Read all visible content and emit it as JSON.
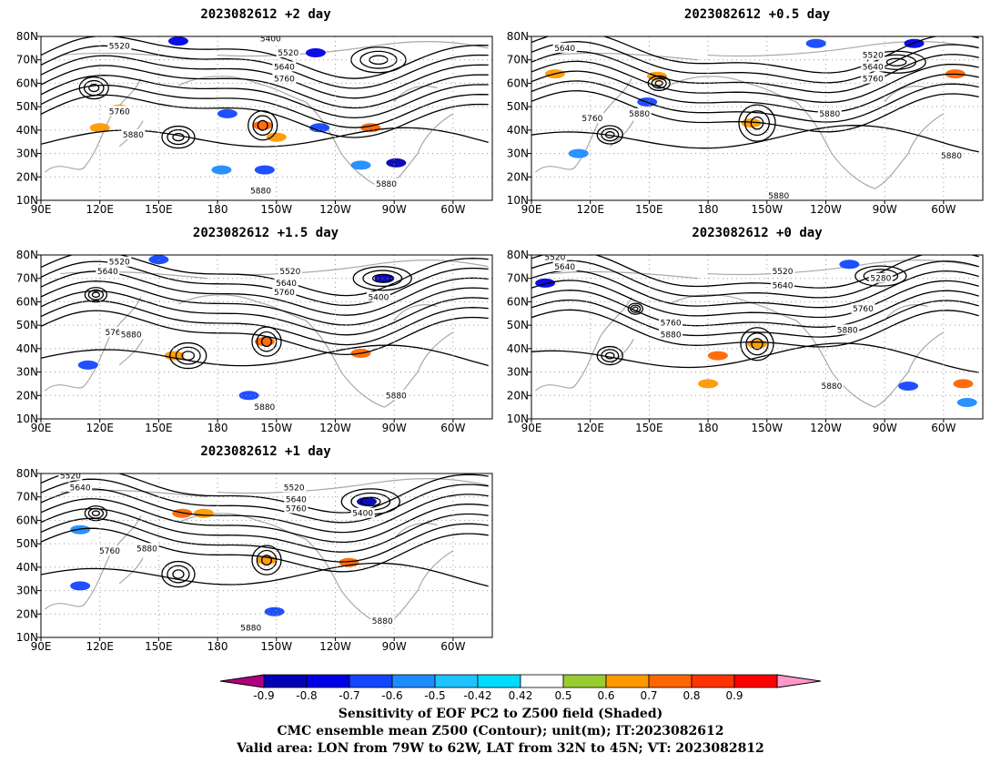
{
  "panels": [
    {
      "title": "2023082612 +2 day"
    },
    {
      "title": "2023082612 +0.5 day"
    },
    {
      "title": "2023082612 +1.5 day"
    },
    {
      "title": "2023082612 +0 day"
    },
    {
      "title": "2023082612 +1 day"
    }
  ],
  "caption": {
    "line1": "Sensitivity of EOF PC2 to Z500 field (Shaded)",
    "line2": "CMC ensemble mean Z500 (Contour); unit(m); IT:2023082612",
    "line3": "Valid area: LON from 79W to 62W, LAT from 32N to 45N; VT: 2023082812"
  },
  "chart_data": {
    "type": "heatmap",
    "map": {
      "lon_ticks": [
        "90E",
        "120E",
        "150E",
        "180",
        "150W",
        "120W",
        "90W",
        "60W"
      ],
      "lat_ticks": [
        "10N",
        "20N",
        "30N",
        "40N",
        "50N",
        "60N",
        "70N",
        "80N"
      ],
      "lon_range": [
        90,
        320
      ],
      "lat_range": [
        10,
        80
      ],
      "grid": true
    },
    "colorbar": {
      "tick_labels": [
        "-0.9",
        "-0.8",
        "-0.7",
        "-0.6",
        "-0.5",
        "-0.42",
        "0.42",
        "0.5",
        "0.6",
        "0.7",
        "0.8",
        "0.9"
      ],
      "colors": [
        "#b0007f",
        "#0000b4",
        "#0000e6",
        "#1446ff",
        "#1e8cff",
        "#1ec3ff",
        "#00dcff",
        "#ffffff",
        "#99cc33",
        "#ff9900",
        "#ff6600",
        "#ff3300",
        "#ff0000",
        "#ff99cc"
      ]
    },
    "contour_labels": [
      [
        {
          "text": "5400",
          "lon": 207,
          "lat": 79
        },
        {
          "text": "5520",
          "lon": 130,
          "lat": 76
        },
        {
          "text": "5520",
          "lon": 216,
          "lat": 73
        },
        {
          "text": "5640",
          "lon": 214,
          "lat": 67
        },
        {
          "text": "5760",
          "lon": 214,
          "lat": 62
        },
        {
          "text": "5760",
          "lon": 130,
          "lat": 48
        },
        {
          "text": "5880",
          "lon": 137,
          "lat": 38
        },
        {
          "text": "5880",
          "lon": 202,
          "lat": 14
        },
        {
          "text": "5880",
          "lon": 266,
          "lat": 17
        }
      ],
      [
        {
          "text": "5640",
          "lon": 107,
          "lat": 75
        },
        {
          "text": "5520",
          "lon": 264,
          "lat": 72
        },
        {
          "text": "5640",
          "lon": 264,
          "lat": 67
        },
        {
          "text": "5760",
          "lon": 264,
          "lat": 62
        },
        {
          "text": "5760",
          "lon": 121,
          "lat": 45
        },
        {
          "text": "5880",
          "lon": 145,
          "lat": 47
        },
        {
          "text": "5880",
          "lon": 242,
          "lat": 47
        },
        {
          "text": "5880",
          "lon": 304,
          "lat": 29
        },
        {
          "text": "5880",
          "lon": 216,
          "lat": 12
        }
      ],
      [
        {
          "text": "5520",
          "lon": 130,
          "lat": 77
        },
        {
          "text": "5640",
          "lon": 124,
          "lat": 73
        },
        {
          "text": "5520",
          "lon": 217,
          "lat": 73
        },
        {
          "text": "5640",
          "lon": 215,
          "lat": 68
        },
        {
          "text": "5760",
          "lon": 214,
          "lat": 64
        },
        {
          "text": "5400",
          "lon": 262,
          "lat": 62
        },
        {
          "text": "5760",
          "lon": 128,
          "lat": 47
        },
        {
          "text": "5880",
          "lon": 136,
          "lat": 46
        },
        {
          "text": "5880",
          "lon": 204,
          "lat": 15
        },
        {
          "text": "5880",
          "lon": 271,
          "lat": 20
        }
      ],
      [
        {
          "text": "5520",
          "lon": 102,
          "lat": 79
        },
        {
          "text": "5640",
          "lon": 107,
          "lat": 75
        },
        {
          "text": "5520",
          "lon": 218,
          "lat": 73
        },
        {
          "text": "5640",
          "lon": 218,
          "lat": 67
        },
        {
          "text": "5280",
          "lon": 268,
          "lat": 70
        },
        {
          "text": "5760",
          "lon": 161,
          "lat": 51
        },
        {
          "text": "5880",
          "lon": 161,
          "lat": 46
        },
        {
          "text": "5760",
          "lon": 259,
          "lat": 57
        },
        {
          "text": "5880",
          "lon": 251,
          "lat": 48
        },
        {
          "text": "5880",
          "lon": 243,
          "lat": 24
        }
      ],
      [
        {
          "text": "5520",
          "lon": 105,
          "lat": 79
        },
        {
          "text": "5640",
          "lon": 110,
          "lat": 74
        },
        {
          "text": "5520",
          "lon": 219,
          "lat": 74
        },
        {
          "text": "5640",
          "lon": 220,
          "lat": 69
        },
        {
          "text": "5760",
          "lon": 220,
          "lat": 65
        },
        {
          "text": "5400",
          "lon": 254,
          "lat": 63
        },
        {
          "text": "5760",
          "lon": 125,
          "lat": 47
        },
        {
          "text": "5880",
          "lon": 144,
          "lat": 48
        },
        {
          "text": "5880",
          "lon": 197,
          "lat": 14
        },
        {
          "text": "5880",
          "lon": 264,
          "lat": 17
        }
      ]
    ],
    "shading_features": [
      [
        {
          "lon": 160,
          "lat": 78,
          "value": -0.7
        },
        {
          "lon": 230,
          "lat": 73,
          "value": -0.7
        },
        {
          "lon": 185,
          "lat": 47,
          "value": -0.6
        },
        {
          "lon": 130,
          "lat": 49,
          "value": 0.5
        },
        {
          "lon": 120,
          "lat": 41,
          "value": 0.5
        },
        {
          "lon": 203,
          "lat": 42,
          "value": 0.6
        },
        {
          "lon": 210,
          "lat": 37,
          "value": 0.5
        },
        {
          "lon": 258,
          "lat": 41,
          "value": 0.6
        },
        {
          "lon": 232,
          "lat": 41,
          "value": -0.6
        },
        {
          "lon": 182,
          "lat": 23,
          "value": -0.5
        },
        {
          "lon": 204,
          "lat": 23,
          "value": -0.6
        },
        {
          "lon": 253,
          "lat": 25,
          "value": -0.5
        },
        {
          "lon": 271,
          "lat": 26,
          "value": -0.8
        }
      ],
      [
        {
          "lon": 235,
          "lat": 77,
          "value": -0.6
        },
        {
          "lon": 285,
          "lat": 77,
          "value": -0.7
        },
        {
          "lon": 154,
          "lat": 63,
          "value": 0.5
        },
        {
          "lon": 102,
          "lat": 64,
          "value": 0.5
        },
        {
          "lon": 149,
          "lat": 52,
          "value": -0.6
        },
        {
          "lon": 202,
          "lat": 43,
          "value": 0.5
        },
        {
          "lon": 306,
          "lat": 64,
          "value": 0.6
        },
        {
          "lon": 114,
          "lat": 30,
          "value": -0.5
        }
      ],
      [
        {
          "lon": 150,
          "lat": 78,
          "value": -0.6
        },
        {
          "lon": 265,
          "lat": 70,
          "value": -0.8
        },
        {
          "lon": 158,
          "lat": 37,
          "value": 0.5
        },
        {
          "lon": 204,
          "lat": 43,
          "value": 0.6
        },
        {
          "lon": 253,
          "lat": 38,
          "value": 0.6
        },
        {
          "lon": 114,
          "lat": 33,
          "value": -0.6
        },
        {
          "lon": 196,
          "lat": 20,
          "value": -0.6
        }
      ],
      [
        {
          "lon": 97,
          "lat": 68,
          "value": -0.7
        },
        {
          "lon": 252,
          "lat": 76,
          "value": -0.6
        },
        {
          "lon": 205,
          "lat": 42,
          "value": 0.5
        },
        {
          "lon": 185,
          "lat": 37,
          "value": 0.6
        },
        {
          "lon": 180,
          "lat": 25,
          "value": 0.5
        },
        {
          "lon": 282,
          "lat": 24,
          "value": -0.6
        },
        {
          "lon": 310,
          "lat": 25,
          "value": 0.6
        },
        {
          "lon": 312,
          "lat": 17,
          "value": -0.5
        }
      ],
      [
        {
          "lon": 256,
          "lat": 68,
          "value": -0.8
        },
        {
          "lon": 162,
          "lat": 63,
          "value": 0.6
        },
        {
          "lon": 173,
          "lat": 63,
          "value": 0.5
        },
        {
          "lon": 205,
          "lat": 43,
          "value": 0.5
        },
        {
          "lon": 247,
          "lat": 42,
          "value": 0.6
        },
        {
          "lon": 209,
          "lat": 21,
          "value": -0.6
        },
        {
          "lon": 110,
          "lat": 56,
          "value": -0.5
        },
        {
          "lon": 110,
          "lat": 32,
          "value": -0.6
        }
      ]
    ]
  }
}
